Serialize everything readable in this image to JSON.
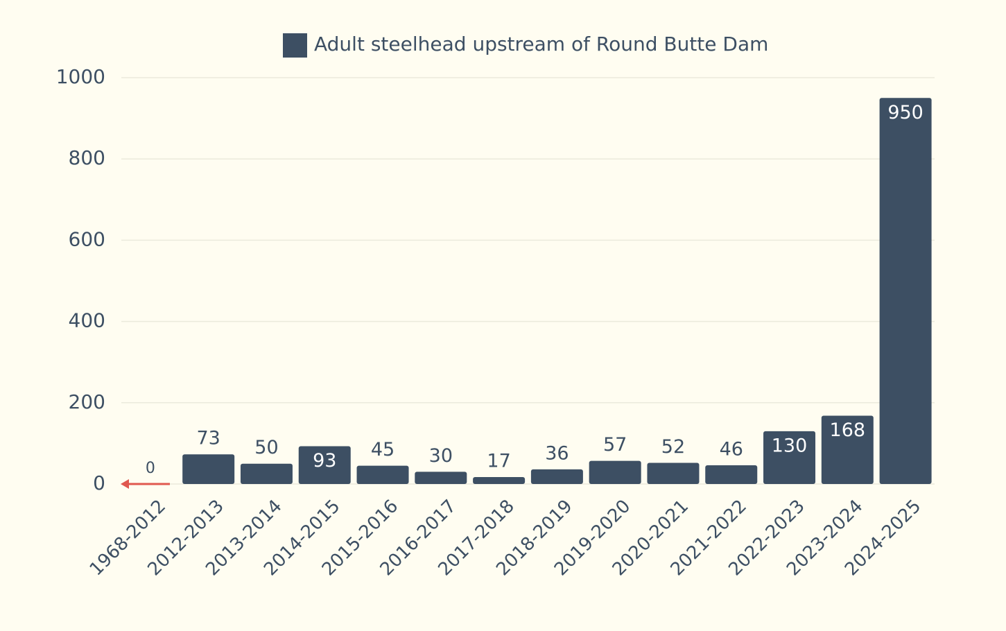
{
  "chart_data": {
    "type": "bar",
    "legend_label": "Adult steelhead upstream of Round Butte Dam",
    "categories": [
      "1968-2012",
      "2012-2013",
      "2013-2014",
      "2014-2015",
      "2015-2016",
      "2016-2017",
      "2017-2018",
      "2018-2019",
      "2019-2020",
      "2020-2021",
      "2021-2022",
      "2022-2023",
      "2023-2024",
      "2024-2025"
    ],
    "values": [
      0,
      73,
      50,
      93,
      45,
      30,
      17,
      36,
      57,
      52,
      46,
      130,
      168,
      950
    ],
    "color": "#3d4f63",
    "ylim": [
      0,
      1000
    ],
    "yticks": [
      0,
      200,
      400,
      600,
      800,
      1000
    ],
    "grid": true
  }
}
